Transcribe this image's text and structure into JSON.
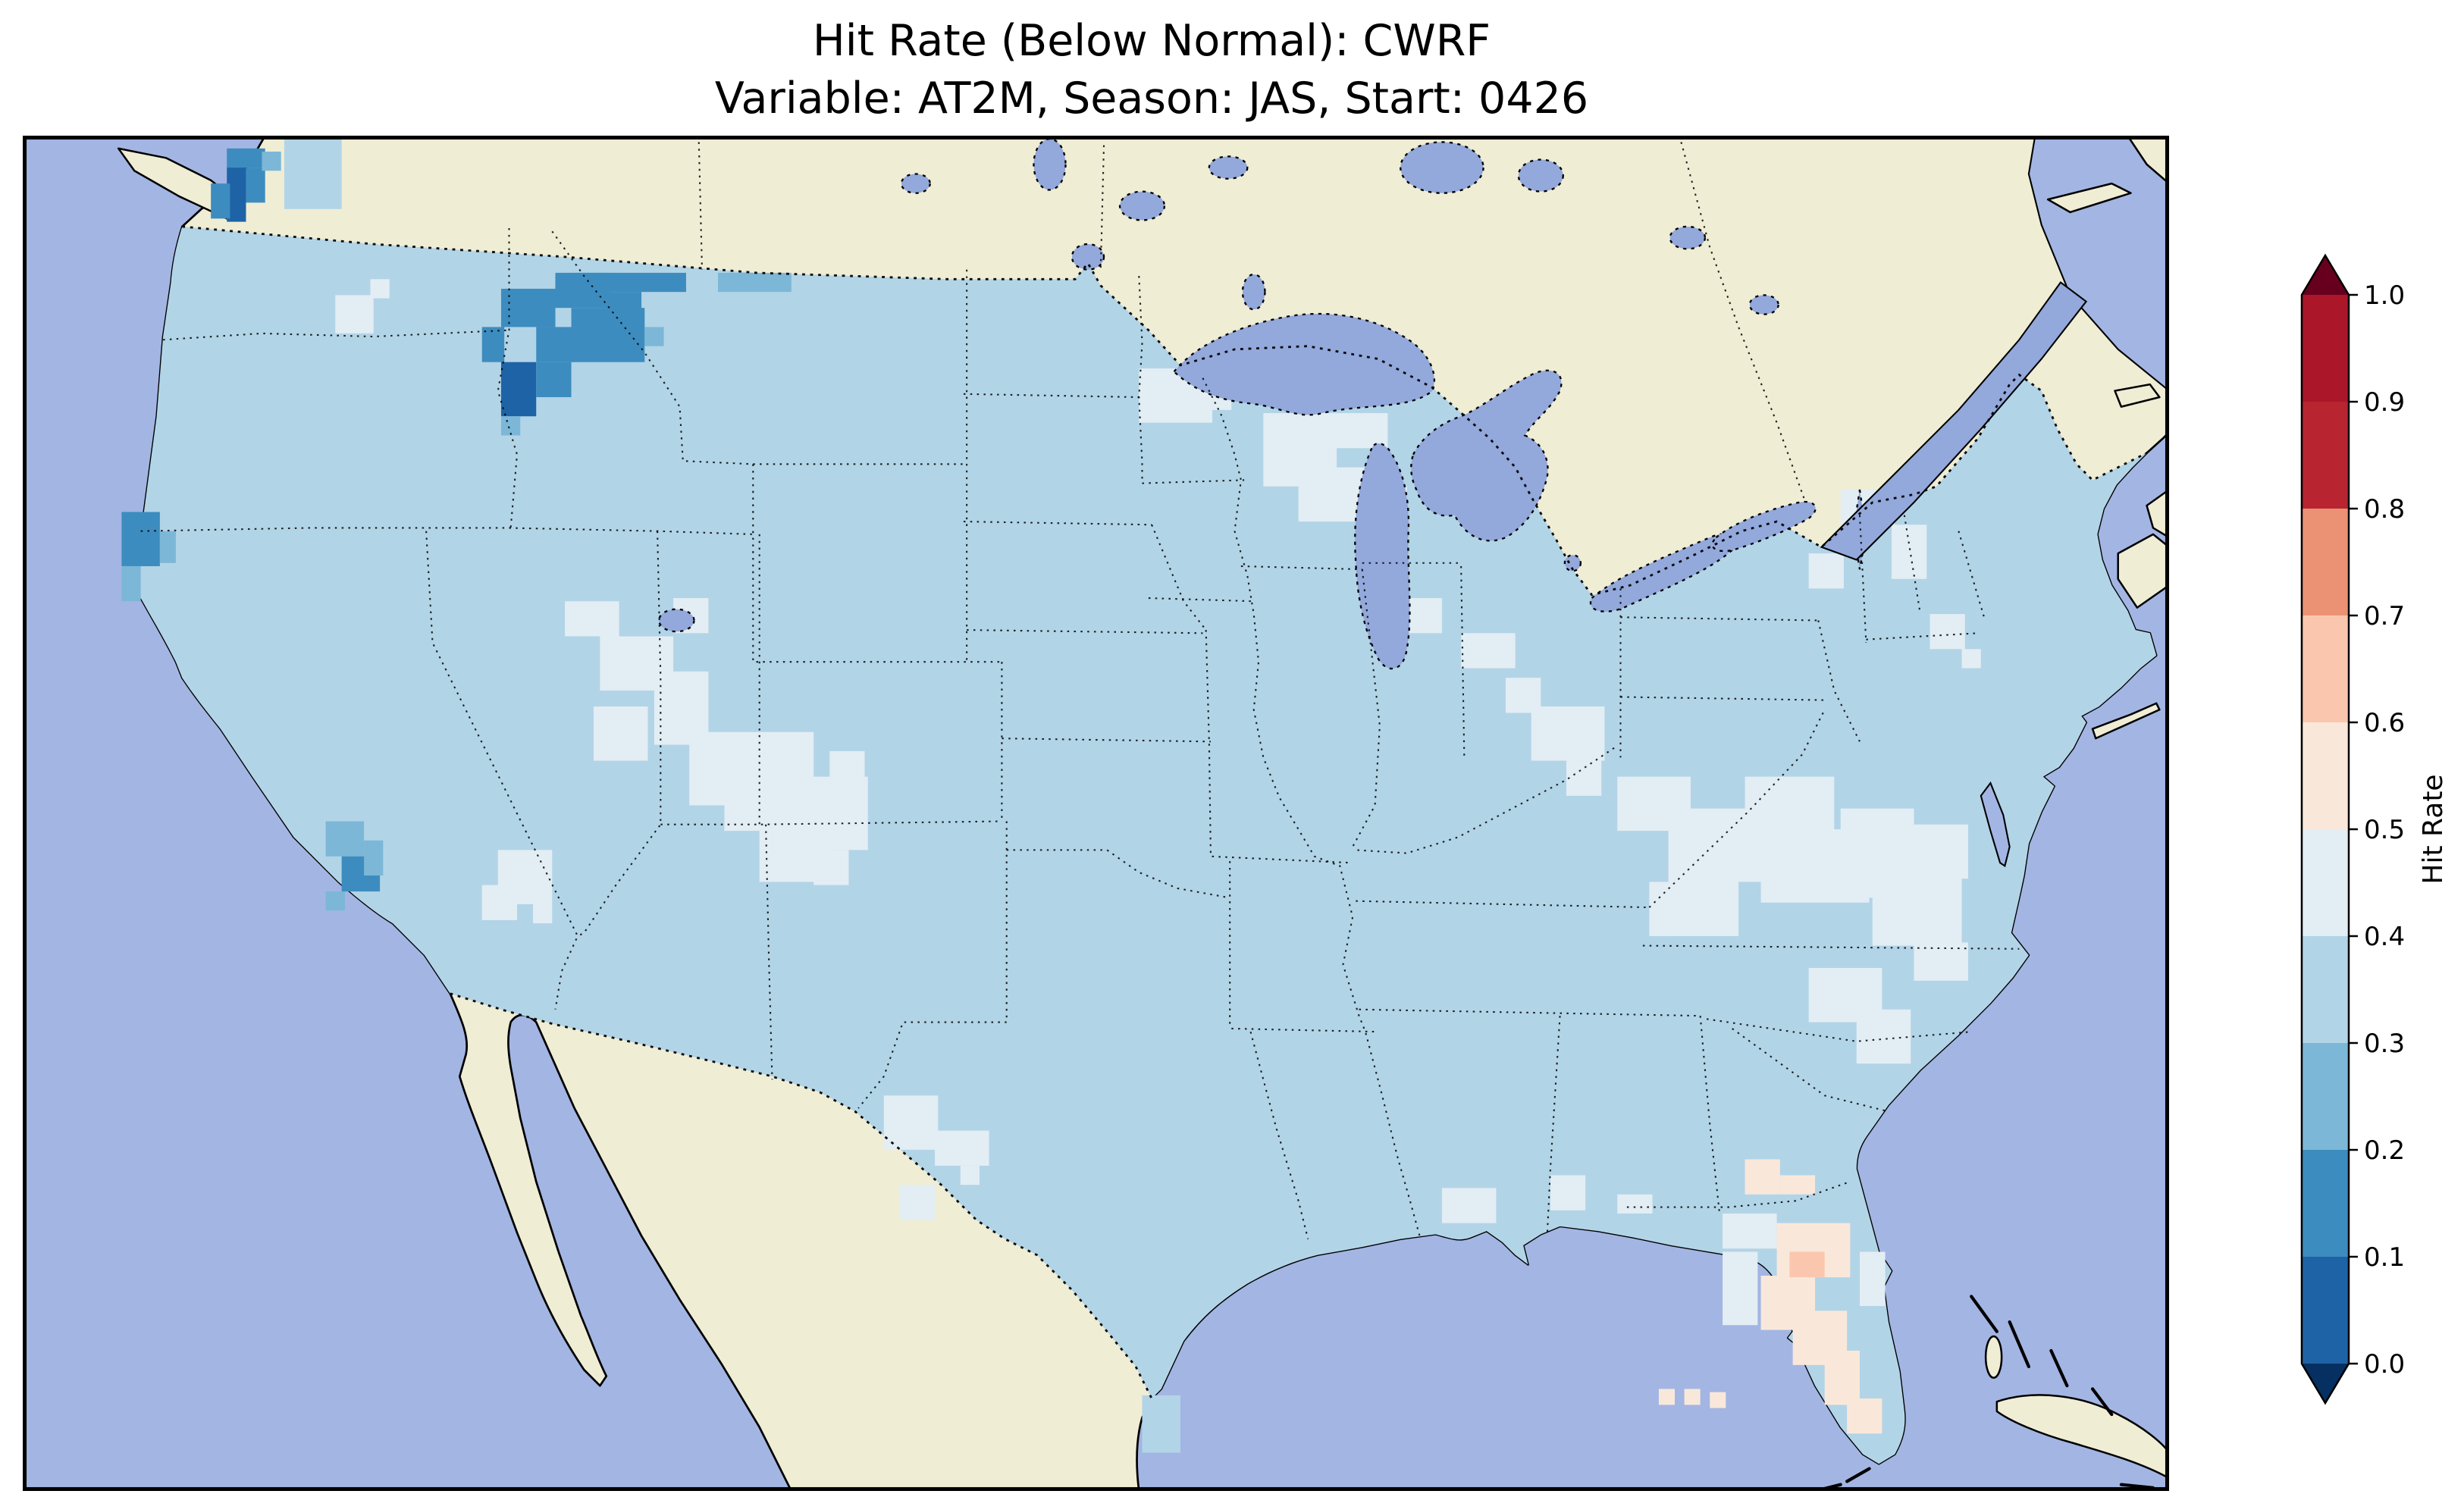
{
  "figure": {
    "title_line1": "Hit Rate (Below Normal): CWRF",
    "title_line2": "Variable: AT2M, Season: JAS, Start: 0426"
  },
  "chart_data": {
    "type": "heatmap",
    "title": "Hit Rate (Below Normal): CWRF",
    "subtitle": "Variable: AT2M, Season: JAS, Start: 0426",
    "model": "CWRF",
    "category": "Below Normal",
    "variable": "AT2M",
    "season": "JAS",
    "start": "0426",
    "region": "Contiguous United States with neighboring Canada, Mexico, Cuba and Bahamas",
    "colorbar": {
      "label": "Hit Rate",
      "range": [
        0.0,
        1.0
      ],
      "bin_size": 0.1,
      "extend": "both",
      "colormap": "RdBu_r (discrete, 10 bins)",
      "ticks": [
        "1.0",
        "0.9",
        "0.8",
        "0.7",
        "0.6",
        "0.5",
        "0.4",
        "0.3",
        "0.2",
        "0.1",
        "0.0"
      ],
      "segments_bottom_to_top": [
        "#1e63a5",
        "#3d8cbf",
        "#7cb7d7",
        "#b2d4e7",
        "#e3edf4",
        "#f9e8da",
        "#fac7ae",
        "#ec9274",
        "#b82531",
        "#ab1629"
      ],
      "under_color": "#053061",
      "over_color": "#67001f"
    },
    "regions_summary": [
      {
        "area": "Most of the contiguous US",
        "hit_rate": [
          0.3,
          0.4
        ]
      },
      {
        "area": "Montana / Idaho Rockies cluster",
        "hit_rate": [
          0.1,
          0.2
        ]
      },
      {
        "area": "Central Montana core cells",
        "hit_rate": [
          0.0,
          0.1
        ]
      },
      {
        "area": "Puget Sound, Washington",
        "hit_rate": [
          0.0,
          0.2
        ]
      },
      {
        "area": "Northwest California coast",
        "hit_rate": [
          0.1,
          0.3
        ]
      },
      {
        "area": "Southern California interior patch",
        "hit_rate": [
          0.1,
          0.3
        ]
      },
      {
        "area": "Great Basin (Nevada/Utah) and Four Corners",
        "hit_rate": [
          0.4,
          0.5
        ]
      },
      {
        "area": "South-central Arizona",
        "hit_rate": [
          0.4,
          0.5
        ]
      },
      {
        "area": "North Texas patches",
        "hit_rate": [
          0.4,
          0.5
        ]
      },
      {
        "area": "Minnesota / Wisconsin",
        "hit_rate": [
          0.4,
          0.5
        ]
      },
      {
        "area": "Ohio Valley patches",
        "hit_rate": [
          0.4,
          0.5
        ]
      },
      {
        "area": "Virginia / Carolinas",
        "hit_rate": [
          0.4,
          0.5
        ]
      },
      {
        "area": "Florida peninsula",
        "hit_rate": [
          0.5,
          0.7
        ]
      }
    ]
  },
  "map_colors": {
    "ocean": "#a3b5e3",
    "land": "#f0edd5",
    "lake": "#93a8db",
    "frame": "#000000"
  },
  "palette": {
    "b01": "#1e63a5",
    "b12": "#3d8cbf",
    "b23": "#7cb7d7",
    "b34": "#b2d4e7",
    "b45": "#e3edf4",
    "b56": "#f9e8da",
    "b67": "#fac7ae"
  }
}
